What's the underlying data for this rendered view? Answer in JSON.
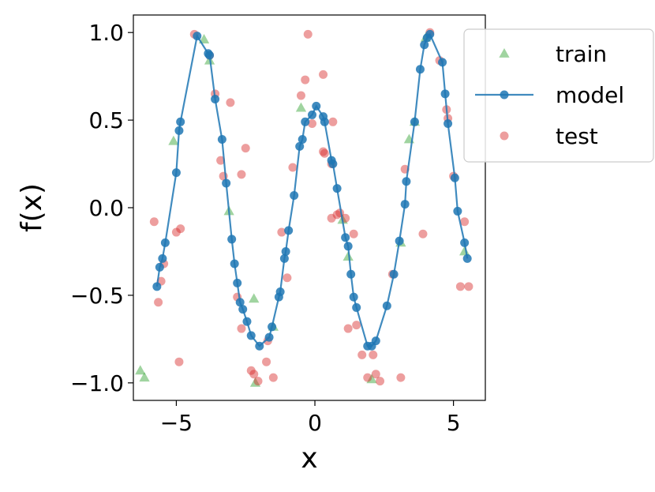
{
  "chart_data": {
    "type": "scatter",
    "xlabel": "x",
    "ylabel": "f(x)",
    "xlim": [
      -6.55,
      6.15
    ],
    "ylim": [
      -1.1,
      1.1
    ],
    "xticks": [
      {
        "value": -5,
        "label": "−5"
      },
      {
        "value": 0,
        "label": "0"
      },
      {
        "value": 5,
        "label": "5"
      }
    ],
    "yticks": [
      {
        "value": 1.0,
        "label": "1.0"
      },
      {
        "value": 0.5,
        "label": "0.5"
      },
      {
        "value": 0.0,
        "label": "0.0"
      },
      {
        "value": -0.5,
        "label": "−0.5"
      },
      {
        "value": -1.0,
        "label": "−1.0"
      }
    ],
    "grid": false,
    "legend_placement": "upper-right, outside axes",
    "series": [
      {
        "name": "train",
        "kind": "scatter",
        "marker": "triangle",
        "color": "#2ca02c",
        "points": [
          [
            -6.3,
            -0.93
          ],
          [
            -6.15,
            -0.97
          ],
          [
            -5.1,
            0.38
          ],
          [
            -4.0,
            0.96
          ],
          [
            -3.8,
            0.84
          ],
          [
            -3.1,
            -0.02
          ],
          [
            -2.2,
            -0.52
          ],
          [
            -2.15,
            -1.0
          ],
          [
            -1.5,
            -0.68
          ],
          [
            -0.5,
            0.57
          ],
          [
            1.0,
            -0.07
          ],
          [
            1.2,
            -0.28
          ],
          [
            2.05,
            -0.98
          ],
          [
            3.1,
            -0.2
          ],
          [
            3.4,
            0.39
          ],
          [
            3.6,
            0.49
          ],
          [
            4.0,
            0.97
          ],
          [
            5.4,
            -0.25
          ]
        ]
      },
      {
        "name": "model",
        "kind": "line",
        "marker": "circle",
        "color": "#1f77b4",
        "points": [
          [
            -5.7,
            -0.45
          ],
          [
            -5.6,
            -0.34
          ],
          [
            -5.5,
            -0.29
          ],
          [
            -5.4,
            -0.2
          ],
          [
            -5.0,
            0.2
          ],
          [
            -4.9,
            0.44
          ],
          [
            -4.85,
            0.49
          ],
          [
            -4.25,
            0.98
          ],
          [
            -3.85,
            0.88
          ],
          [
            -3.8,
            0.87
          ],
          [
            -3.6,
            0.62
          ],
          [
            -3.35,
            0.39
          ],
          [
            -3.2,
            0.14
          ],
          [
            -3.0,
            -0.18
          ],
          [
            -2.9,
            -0.32
          ],
          [
            -2.8,
            -0.43
          ],
          [
            -2.7,
            -0.54
          ],
          [
            -2.6,
            -0.58
          ],
          [
            -2.45,
            -0.65
          ],
          [
            -2.3,
            -0.73
          ],
          [
            -2.0,
            -0.79
          ],
          [
            -1.65,
            -0.74
          ],
          [
            -1.55,
            -0.68
          ],
          [
            -1.3,
            -0.51
          ],
          [
            -1.25,
            -0.48
          ],
          [
            -1.1,
            -0.29
          ],
          [
            -1.05,
            -0.25
          ],
          [
            -0.95,
            -0.13
          ],
          [
            -0.75,
            0.07
          ],
          [
            -0.55,
            0.35
          ],
          [
            -0.45,
            0.39
          ],
          [
            -0.35,
            0.49
          ],
          [
            -0.1,
            0.53
          ],
          [
            0.05,
            0.58
          ],
          [
            0.3,
            0.52
          ],
          [
            0.35,
            0.49
          ],
          [
            0.6,
            0.27
          ],
          [
            0.65,
            0.25
          ],
          [
            0.8,
            0.11
          ],
          [
            1.1,
            -0.17
          ],
          [
            1.2,
            -0.22
          ],
          [
            1.3,
            -0.38
          ],
          [
            1.4,
            -0.51
          ],
          [
            1.5,
            -0.57
          ],
          [
            1.9,
            -0.79
          ],
          [
            2.05,
            -0.79
          ],
          [
            2.2,
            -0.76
          ],
          [
            2.6,
            -0.56
          ],
          [
            2.85,
            -0.38
          ],
          [
            3.05,
            -0.19
          ],
          [
            3.25,
            0.02
          ],
          [
            3.3,
            0.15
          ],
          [
            3.6,
            0.49
          ],
          [
            3.8,
            0.79
          ],
          [
            3.95,
            0.93
          ],
          [
            4.05,
            0.97
          ],
          [
            4.15,
            0.99
          ],
          [
            4.6,
            0.83
          ],
          [
            4.7,
            0.65
          ],
          [
            4.8,
            0.48
          ],
          [
            5.05,
            0.17
          ],
          [
            5.15,
            -0.02
          ],
          [
            5.4,
            -0.2
          ],
          [
            5.5,
            -0.29
          ]
        ]
      },
      {
        "name": "test",
        "kind": "scatter",
        "marker": "circle",
        "color": "#d62728",
        "points": [
          [
            -5.8,
            -0.08
          ],
          [
            -5.65,
            -0.54
          ],
          [
            -5.55,
            -0.42
          ],
          [
            -5.45,
            -0.32
          ],
          [
            -5.0,
            -0.14
          ],
          [
            -4.85,
            -0.12
          ],
          [
            -4.9,
            -0.88
          ],
          [
            -4.35,
            0.99
          ],
          [
            -3.8,
            0.87
          ],
          [
            -3.6,
            0.65
          ],
          [
            -3.4,
            0.27
          ],
          [
            -3.3,
            0.18
          ],
          [
            -3.05,
            0.6
          ],
          [
            -2.8,
            -0.51
          ],
          [
            -2.65,
            0.19
          ],
          [
            -2.65,
            -0.69
          ],
          [
            -2.5,
            0.34
          ],
          [
            -2.3,
            -0.93
          ],
          [
            -2.2,
            -0.95
          ],
          [
            -2.05,
            -0.99
          ],
          [
            -1.75,
            -0.88
          ],
          [
            -1.7,
            -0.76
          ],
          [
            -1.5,
            -0.97
          ],
          [
            -1.2,
            -0.14
          ],
          [
            -1.0,
            -0.4
          ],
          [
            -0.8,
            0.23
          ],
          [
            -0.5,
            0.64
          ],
          [
            -0.35,
            0.73
          ],
          [
            -0.25,
            0.99
          ],
          [
            -0.1,
            0.48
          ],
          [
            0.3,
            0.76
          ],
          [
            0.3,
            0.32
          ],
          [
            0.35,
            0.31
          ],
          [
            0.65,
            0.49
          ],
          [
            0.6,
            0.25
          ],
          [
            0.6,
            -0.06
          ],
          [
            0.8,
            -0.04
          ],
          [
            0.9,
            -0.03
          ],
          [
            1.1,
            -0.06
          ],
          [
            1.2,
            -0.69
          ],
          [
            1.4,
            -0.15
          ],
          [
            1.5,
            -0.67
          ],
          [
            1.7,
            -0.84
          ],
          [
            1.9,
            -0.97
          ],
          [
            2.1,
            -0.84
          ],
          [
            2.2,
            -0.95
          ],
          [
            2.35,
            -0.99
          ],
          [
            2.8,
            -0.38
          ],
          [
            3.1,
            -0.97
          ],
          [
            3.25,
            0.22
          ],
          [
            3.9,
            -0.15
          ],
          [
            4.15,
            1.0
          ],
          [
            4.5,
            0.84
          ],
          [
            4.75,
            0.56
          ],
          [
            4.8,
            0.51
          ],
          [
            5.0,
            0.18
          ],
          [
            5.25,
            -0.45
          ],
          [
            5.4,
            -0.08
          ],
          [
            5.55,
            -0.45
          ]
        ]
      }
    ]
  }
}
